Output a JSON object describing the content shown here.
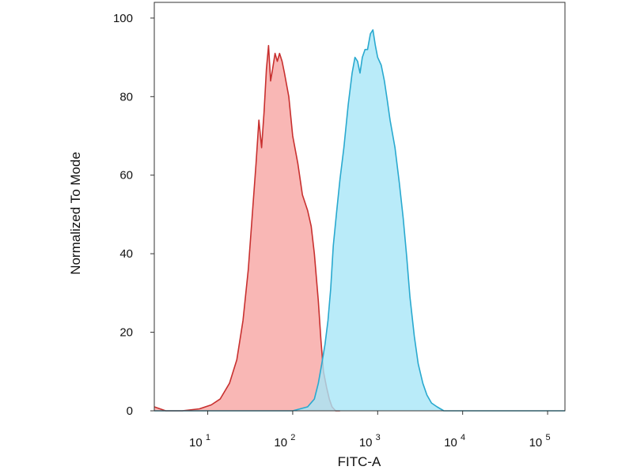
{
  "chart_data": {
    "type": "area",
    "title": "",
    "xlabel": "FITC-A",
    "ylabel": "Normalized To Mode",
    "xscale": "log",
    "xlim": [
      2.35,
      160000
    ],
    "ylim": [
      0,
      104
    ],
    "y_ticks": [
      {
        "value": 0,
        "label": "0"
      },
      {
        "value": 20,
        "label": "20"
      },
      {
        "value": 40,
        "label": "40"
      },
      {
        "value": 60,
        "label": "60"
      },
      {
        "value": 80,
        "label": "80"
      },
      {
        "value": 100,
        "label": "100"
      }
    ],
    "x_ticks": [
      {
        "value": 10,
        "base": "10",
        "exp": "1"
      },
      {
        "value": 100,
        "base": "10",
        "exp": "2"
      },
      {
        "value": 1000,
        "base": "10",
        "exp": "3"
      },
      {
        "value": 10000,
        "base": "10",
        "exp": "4"
      },
      {
        "value": 100000,
        "base": "10",
        "exp": "5"
      }
    ],
    "grid": false,
    "legend": "none",
    "series": [
      {
        "fill": "#f7a5a3",
        "stroke": "#c8302f",
        "points": [
          [
            2.35,
            1
          ],
          [
            3.2,
            0
          ],
          [
            5,
            0
          ],
          [
            8,
            0.5
          ],
          [
            11,
            1.5
          ],
          [
            14,
            3
          ],
          [
            18,
            7
          ],
          [
            22,
            13
          ],
          [
            26,
            23
          ],
          [
            30,
            36
          ],
          [
            34,
            52
          ],
          [
            37,
            63
          ],
          [
            40,
            74
          ],
          [
            43,
            67
          ],
          [
            46,
            76
          ],
          [
            49,
            87
          ],
          [
            52,
            93
          ],
          [
            55,
            84
          ],
          [
            58,
            87
          ],
          [
            62,
            91
          ],
          [
            66,
            89
          ],
          [
            70,
            91
          ],
          [
            75,
            89
          ],
          [
            80,
            86
          ],
          [
            90,
            80
          ],
          [
            100,
            70
          ],
          [
            115,
            63
          ],
          [
            130,
            55
          ],
          [
            150,
            51
          ],
          [
            165,
            47
          ],
          [
            180,
            40
          ],
          [
            200,
            28
          ],
          [
            215,
            18
          ],
          [
            230,
            10
          ],
          [
            250,
            6
          ],
          [
            270,
            3
          ],
          [
            290,
            1
          ],
          [
            320,
            0
          ],
          [
            360,
            0
          ]
        ]
      },
      {
        "fill": "#a8e6f7",
        "stroke": "#29a9cf",
        "points": [
          [
            2.35,
            0
          ],
          [
            100,
            0
          ],
          [
            150,
            1
          ],
          [
            180,
            3
          ],
          [
            200,
            7
          ],
          [
            220,
            12
          ],
          [
            240,
            17
          ],
          [
            260,
            23
          ],
          [
            280,
            31
          ],
          [
            300,
            42
          ],
          [
            330,
            51
          ],
          [
            360,
            59
          ],
          [
            400,
            67
          ],
          [
            450,
            78
          ],
          [
            500,
            86
          ],
          [
            540,
            90
          ],
          [
            580,
            89
          ],
          [
            620,
            86
          ],
          [
            660,
            90
          ],
          [
            710,
            92
          ],
          [
            760,
            92
          ],
          [
            820,
            96
          ],
          [
            880,
            97
          ],
          [
            940,
            93
          ],
          [
            1000,
            90
          ],
          [
            1100,
            88
          ],
          [
            1200,
            84
          ],
          [
            1300,
            79
          ],
          [
            1400,
            74
          ],
          [
            1600,
            67
          ],
          [
            1800,
            58
          ],
          [
            2000,
            49
          ],
          [
            2200,
            39
          ],
          [
            2400,
            29
          ],
          [
            2700,
            19
          ],
          [
            3000,
            12
          ],
          [
            3400,
            7
          ],
          [
            3800,
            4
          ],
          [
            4300,
            2
          ],
          [
            5000,
            1
          ],
          [
            6000,
            0
          ],
          [
            160000,
            0
          ]
        ]
      }
    ]
  }
}
